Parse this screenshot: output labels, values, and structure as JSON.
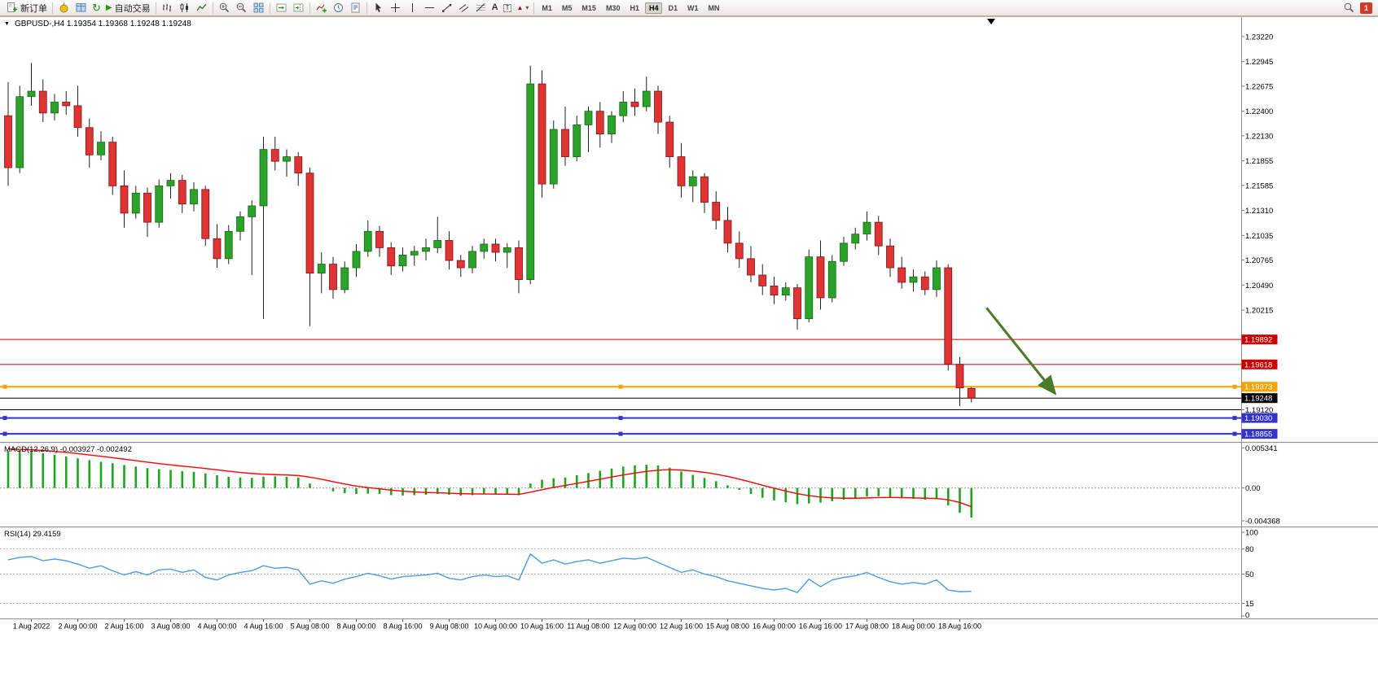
{
  "toolbar": {
    "new_order_label": "新订单",
    "autotrading_label": "自动交易",
    "timeframes": [
      "M1",
      "M5",
      "M15",
      "M30",
      "H1",
      "H4",
      "D1",
      "W1",
      "MN"
    ],
    "active_timeframe": "H4",
    "notification_count": "1",
    "icons": {
      "refresh": "↻",
      "play": "▶",
      "text_tool": "A",
      "label_tool": "T",
      "shape_tool": "▲",
      "caret": "▾"
    }
  },
  "chart": {
    "one_click_icon": "▼",
    "symbol_line": "GBPUSD-,H4  1.19354 1.19368 1.19248 1.19248",
    "macd_label": "MACD(12,26,9) -0.003927 -0.002492",
    "rsi_label": "RSI(14) 29.4159"
  },
  "chart_data": {
    "type": "candlestick",
    "symbol": "GBPUSD-",
    "timeframe": "H4",
    "current_quote": {
      "open": "1.19354",
      "high": "1.19368",
      "low": "1.19248",
      "close": "1.19248"
    },
    "price_axis": {
      "top_price": 1.23425,
      "bottom_price": 1.18785,
      "grid_labels": [
        "1.23220",
        "1.22945",
        "1.22675",
        "1.22400",
        "1.22130",
        "1.21855",
        "1.21585",
        "1.21310",
        "1.21035",
        "1.20765",
        "1.20490",
        "1.20215",
        "1.19120"
      ]
    },
    "hlines": [
      {
        "price": 1.19892,
        "color": "#cc0000",
        "width": 1,
        "tag": "1.19892",
        "selected": false
      },
      {
        "price": 1.19618,
        "color": "#cc0000",
        "width": 1,
        "tag": "1.19618",
        "selected": false
      },
      {
        "price": 1.19373,
        "color": "#f5a300",
        "width": 2,
        "tag": "1.19373",
        "selected": true
      },
      {
        "price": 1.19248,
        "color": "#000000",
        "width": 1,
        "tag": "1.19248",
        "selected": false,
        "role": "current_price"
      },
      {
        "price": 1.1912,
        "color": "#000000",
        "width": 1,
        "tag": null,
        "selected": false
      },
      {
        "price": 1.1903,
        "color": "#3333cc",
        "width": 2,
        "tag": "1.19030",
        "selected": true
      },
      {
        "price": 1.18855,
        "color": "#3333cc",
        "width": 2,
        "tag": "1.18855",
        "selected": true
      }
    ],
    "trend_arrow": {
      "from": {
        "bar": 84.3,
        "price": 1.2024
      },
      "to": {
        "bar": 90.2,
        "price": 1.193
      }
    },
    "candles": [
      [
        1.2235,
        1.2272,
        1.2158,
        1.2178
      ],
      [
        1.2178,
        1.2268,
        1.2172,
        1.2256
      ],
      [
        1.2256,
        1.2293,
        1.2246,
        1.2262
      ],
      [
        1.2262,
        1.2275,
        1.2228,
        1.2238
      ],
      [
        1.2238,
        1.2259,
        1.223,
        1.225
      ],
      [
        1.225,
        1.2262,
        1.2236,
        1.2246
      ],
      [
        1.2246,
        1.2268,
        1.2212,
        1.2222
      ],
      [
        1.2222,
        1.2232,
        1.2178,
        1.2192
      ],
      [
        1.2192,
        1.2218,
        1.2186,
        1.2206
      ],
      [
        1.2206,
        1.2212,
        1.2148,
        1.2158
      ],
      [
        1.2158,
        1.2175,
        1.2112,
        1.2128
      ],
      [
        1.2128,
        1.2158,
        1.2122,
        1.215
      ],
      [
        1.215,
        1.2156,
        1.2102,
        1.2118
      ],
      [
        1.2118,
        1.2165,
        1.2112,
        1.2158
      ],
      [
        1.2158,
        1.2172,
        1.2144,
        1.2164
      ],
      [
        1.2164,
        1.217,
        1.2128,
        1.2138
      ],
      [
        1.2138,
        1.2162,
        1.213,
        1.2154
      ],
      [
        1.2154,
        1.2158,
        1.2092,
        1.21
      ],
      [
        1.21,
        1.2116,
        1.2068,
        1.2078
      ],
      [
        1.2078,
        1.2115,
        1.2072,
        1.2108
      ],
      [
        1.2108,
        1.213,
        1.2098,
        1.2124
      ],
      [
        1.2124,
        1.2142,
        1.206,
        1.2136
      ],
      [
        1.2136,
        1.2212,
        1.2012,
        1.2198
      ],
      [
        1.2198,
        1.2212,
        1.2175,
        1.2185
      ],
      [
        1.2185,
        1.2198,
        1.2168,
        1.219
      ],
      [
        1.219,
        1.2195,
        1.2158,
        1.2172
      ],
      [
        1.2172,
        1.2178,
        1.2004,
        1.2062
      ],
      [
        1.2062,
        1.2085,
        1.204,
        1.2072
      ],
      [
        1.2072,
        1.208,
        1.2034,
        1.2044
      ],
      [
        1.2044,
        1.2075,
        1.204,
        1.2068
      ],
      [
        1.2068,
        1.2094,
        1.2058,
        1.2086
      ],
      [
        1.2086,
        1.212,
        1.208,
        1.2108
      ],
      [
        1.2108,
        1.2114,
        1.208,
        1.209
      ],
      [
        1.209,
        1.2096,
        1.206,
        1.207
      ],
      [
        1.207,
        1.209,
        1.2064,
        1.2082
      ],
      [
        1.2082,
        1.2092,
        1.207,
        1.2086
      ],
      [
        1.2086,
        1.21,
        1.2076,
        1.209
      ],
      [
        1.209,
        1.2124,
        1.2084,
        1.2098
      ],
      [
        1.2098,
        1.2108,
        1.2066,
        1.2076
      ],
      [
        1.2076,
        1.2082,
        1.2058,
        1.2068
      ],
      [
        1.2068,
        1.2092,
        1.2062,
        1.2086
      ],
      [
        1.2086,
        1.21,
        1.2078,
        1.2094
      ],
      [
        1.2094,
        1.21,
        1.2075,
        1.2085
      ],
      [
        1.2085,
        1.2095,
        1.2068,
        1.209
      ],
      [
        1.209,
        1.2098,
        1.204,
        1.2055
      ],
      [
        1.2055,
        1.229,
        1.205,
        1.227
      ],
      [
        1.227,
        1.2285,
        1.2145,
        1.216
      ],
      [
        1.216,
        1.223,
        1.2155,
        1.222
      ],
      [
        1.222,
        1.2245,
        1.218,
        1.219
      ],
      [
        1.219,
        1.2235,
        1.2185,
        1.2225
      ],
      [
        1.2225,
        1.2245,
        1.2195,
        1.224
      ],
      [
        1.224,
        1.225,
        1.22,
        1.2215
      ],
      [
        1.2215,
        1.224,
        1.2205,
        1.2235
      ],
      [
        1.2235,
        1.2262,
        1.2228,
        1.225
      ],
      [
        1.225,
        1.2265,
        1.2235,
        1.2245
      ],
      [
        1.2245,
        1.2278,
        1.224,
        1.2262
      ],
      [
        1.2262,
        1.2268,
        1.2215,
        1.2228
      ],
      [
        1.2228,
        1.2235,
        1.2178,
        1.219
      ],
      [
        1.219,
        1.2205,
        1.2145,
        1.2158
      ],
      [
        1.2158,
        1.2175,
        1.214,
        1.2168
      ],
      [
        1.2168,
        1.2172,
        1.2128,
        1.214
      ],
      [
        1.214,
        1.2152,
        1.211,
        1.212
      ],
      [
        1.212,
        1.2135,
        1.2085,
        1.2095
      ],
      [
        1.2095,
        1.2108,
        1.2068,
        1.2078
      ],
      [
        1.2078,
        1.2092,
        1.2052,
        1.206
      ],
      [
        1.206,
        1.2072,
        1.2038,
        1.2048
      ],
      [
        1.2048,
        1.2058,
        1.2028,
        1.2038
      ],
      [
        1.2038,
        1.2052,
        1.2032,
        1.2046
      ],
      [
        1.2046,
        1.205,
        1.2,
        1.2012
      ],
      [
        1.2012,
        1.2088,
        1.2008,
        1.208
      ],
      [
        1.208,
        1.2098,
        1.2022,
        1.2035
      ],
      [
        1.2035,
        1.2082,
        1.203,
        1.2075
      ],
      [
        1.2075,
        1.2102,
        1.207,
        1.2095
      ],
      [
        1.2095,
        1.2112,
        1.2088,
        1.2105
      ],
      [
        1.2105,
        1.213,
        1.2098,
        1.2118
      ],
      [
        1.2118,
        1.2125,
        1.2082,
        1.2092
      ],
      [
        1.2092,
        1.21,
        1.2058,
        1.2068
      ],
      [
        1.2068,
        1.208,
        1.2045,
        1.2052
      ],
      [
        1.2052,
        1.2066,
        1.2042,
        1.2058
      ],
      [
        1.2058,
        1.2064,
        1.2038,
        1.2044
      ],
      [
        1.2044,
        1.2076,
        1.2036,
        1.2068
      ],
      [
        1.2068,
        1.2072,
        1.1955,
        1.1962
      ],
      [
        1.1962,
        1.197,
        1.1916,
        1.1936
      ],
      [
        1.19354,
        1.19368,
        1.192,
        1.19248
      ]
    ],
    "macd": {
      "label": "MACD(12,26,9)",
      "main_value": "-0.003927",
      "signal_value": "-0.002492",
      "range": [
        -0.0048,
        0.0056
      ],
      "scale_labels": [
        "0.005341",
        "0.00",
        "-0.004368"
      ],
      "scale_values": [
        0.005341,
        0,
        -0.004368
      ],
      "histogram": [
        0.0049,
        0.005,
        0.00495,
        0.00465,
        0.0044,
        0.0042,
        0.00395,
        0.0037,
        0.0035,
        0.0033,
        0.00305,
        0.00285,
        0.00265,
        0.0025,
        0.0024,
        0.00225,
        0.00215,
        0.00195,
        0.0017,
        0.0015,
        0.0014,
        0.00135,
        0.0015,
        0.00155,
        0.0015,
        0.0014,
        0.0006,
        0.0,
        -0.00045,
        -0.0007,
        -0.0008,
        -0.00075,
        -0.0008,
        -0.00095,
        -0.001,
        -0.00095,
        -0.0009,
        -0.0008,
        -0.0009,
        -0.001,
        -0.00095,
        -0.00085,
        -0.00085,
        -0.00085,
        -0.00095,
        0.0006,
        0.0011,
        0.0013,
        0.0014,
        0.0017,
        0.002,
        0.0023,
        0.0026,
        0.00285,
        0.003,
        0.0031,
        0.003,
        0.0027,
        0.0022,
        0.00175,
        0.00135,
        0.0009,
        0.00035,
        -0.00025,
        -0.0008,
        -0.0013,
        -0.00165,
        -0.0019,
        -0.00215,
        -0.00205,
        -0.00195,
        -0.00175,
        -0.00155,
        -0.00135,
        -0.00115,
        -0.0011,
        -0.0012,
        -0.00135,
        -0.00145,
        -0.00155,
        -0.0015,
        -0.0023,
        -0.0033,
        -0.00393
      ],
      "signal": [
        0.0052,
        0.00515,
        0.0051,
        0.005,
        0.00488,
        0.00474,
        0.00458,
        0.0044,
        0.00422,
        0.00404,
        0.00384,
        0.00364,
        0.00344,
        0.00325,
        0.00308,
        0.00291,
        0.00276,
        0.0026,
        0.00242,
        0.00224,
        0.00207,
        0.00193,
        0.00184,
        0.00178,
        0.00173,
        0.00166,
        0.00145,
        0.00116,
        0.00084,
        0.00053,
        0.00026,
        6e-05,
        -0.00011,
        -0.00028,
        -0.00042,
        -0.00053,
        -0.0006,
        -0.00064,
        -0.00069,
        -0.00075,
        -0.00079,
        -0.0008,
        -0.00081,
        -0.00082,
        -0.00085,
        -0.00056,
        -0.00023,
        8e-05,
        0.00034,
        0.00061,
        0.00089,
        0.00117,
        0.00146,
        0.00174,
        0.00199,
        0.00221,
        0.00237,
        0.00244,
        0.00239,
        0.00226,
        0.00208,
        0.00184,
        0.00154,
        0.00118,
        0.00079,
        0.00037,
        -3e-05,
        -0.00041,
        -0.00076,
        -0.00102,
        -0.0012,
        -0.00131,
        -0.00136,
        -0.00136,
        -0.00132,
        -0.00127,
        -0.00126,
        -0.00128,
        -0.00131,
        -0.00136,
        -0.00139,
        -0.00157,
        -0.00192,
        -0.00249
      ]
    },
    "rsi": {
      "label": "RSI(14)",
      "value": "29.4159",
      "range": [
        0,
        100
      ],
      "levels": [
        80,
        50,
        15
      ],
      "scale_labels": [
        "100",
        "80",
        "50",
        "15",
        "0"
      ],
      "values": [
        67,
        70,
        71,
        66,
        68,
        66,
        62,
        57,
        60,
        54,
        49,
        53,
        49,
        55,
        56,
        52,
        55,
        46,
        43,
        49,
        52,
        54,
        60,
        57,
        58,
        55,
        38,
        42,
        39,
        44,
        47,
        51,
        48,
        44,
        47,
        48,
        49,
        51,
        45,
        43,
        47,
        49,
        47,
        48,
        43,
        74,
        63,
        67,
        62,
        65,
        67,
        63,
        66,
        69,
        68,
        70,
        64,
        58,
        52,
        55,
        50,
        47,
        42,
        39,
        36,
        33,
        31,
        33,
        28,
        44,
        35,
        43,
        46,
        48,
        52,
        46,
        41,
        38,
        40,
        38,
        43,
        31,
        29,
        29.4159
      ]
    },
    "time_labels": [
      [
        2,
        "1 Aug 2022"
      ],
      [
        6,
        "2 Aug 00:00"
      ],
      [
        10,
        "2 Aug 16:00"
      ],
      [
        14,
        "3 Aug 08:00"
      ],
      [
        18,
        "4 Aug 00:00"
      ],
      [
        22,
        "4 Aug 16:00"
      ],
      [
        26,
        "5 Aug 08:00"
      ],
      [
        30,
        "8 Aug 00:00"
      ],
      [
        34,
        "8 Aug 16:00"
      ],
      [
        38,
        "9 Aug 08:00"
      ],
      [
        42,
        "10 Aug 00:00"
      ],
      [
        46,
        "10 Aug 16:00"
      ],
      [
        50,
        "11 Aug 08:00"
      ],
      [
        54,
        "12 Aug 00:00"
      ],
      [
        58,
        "12 Aug 16:00"
      ],
      [
        62,
        "15 Aug 08:00"
      ],
      [
        66,
        "16 Aug 00:00"
      ],
      [
        70,
        "16 Aug 16:00"
      ],
      [
        74,
        "17 Aug 08:00"
      ],
      [
        78,
        "18 Aug 00:00"
      ],
      [
        82,
        "18 Aug 16:00"
      ]
    ],
    "colors": {
      "bull": "#2ba32b",
      "bear": "#df3434",
      "wick": "#222222",
      "macd_hist": "#1ea51e",
      "macd_signal": "#ff0000",
      "rsi_line": "#4d9be6",
      "arrow": "#4c7a28",
      "line_red": "#cc0000",
      "line_orange": "#f5a300",
      "line_blue": "#3333cc",
      "line_black": "#000000"
    }
  }
}
